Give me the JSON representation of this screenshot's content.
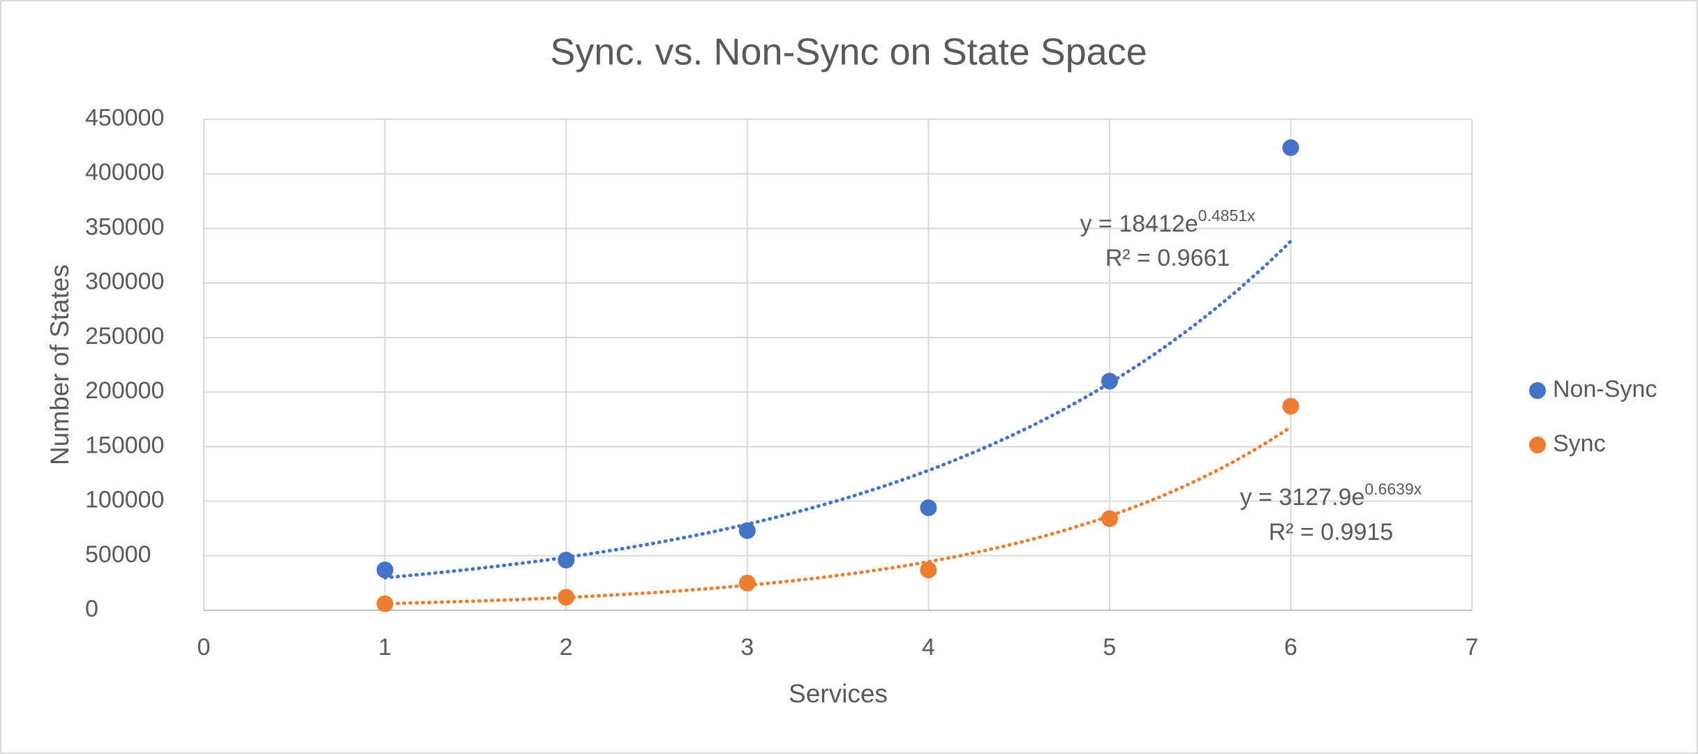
{
  "chart_data": {
    "type": "scatter",
    "title": "Sync. vs. Non-Sync on  State Space",
    "x_label": "Services",
    "y_label": "Number of States",
    "x": [
      1,
      2,
      3,
      4,
      5,
      6
    ],
    "series": [
      {
        "name": "Non-Sync",
        "color": "#4472c4",
        "values": [
          37000,
          46000,
          73000,
          94000,
          210000,
          424000
        ],
        "trendline": {
          "a": 18412,
          "b": 0.4851,
          "equation": "y = 18412e",
          "exponent": "0.4851x",
          "r2": "R² = 0.9661"
        }
      },
      {
        "name": "Sync",
        "color": "#ed7d31",
        "values": [
          6000,
          12000,
          25000,
          37000,
          84000,
          187000
        ],
        "trendline": {
          "a": 3127.9,
          "b": 0.6639,
          "equation": "y = 3127.9e",
          "exponent": "0.6639x",
          "r2": "R² = 0.9915"
        }
      }
    ],
    "xlim": [
      0,
      7
    ],
    "xticks": [
      0,
      1,
      2,
      3,
      4,
      5,
      6,
      7
    ],
    "ylim": [
      0,
      450000
    ],
    "yticks": [
      0,
      50000,
      100000,
      150000,
      200000,
      250000,
      300000,
      350000,
      400000,
      450000
    ],
    "grid": true,
    "legend": "right"
  }
}
